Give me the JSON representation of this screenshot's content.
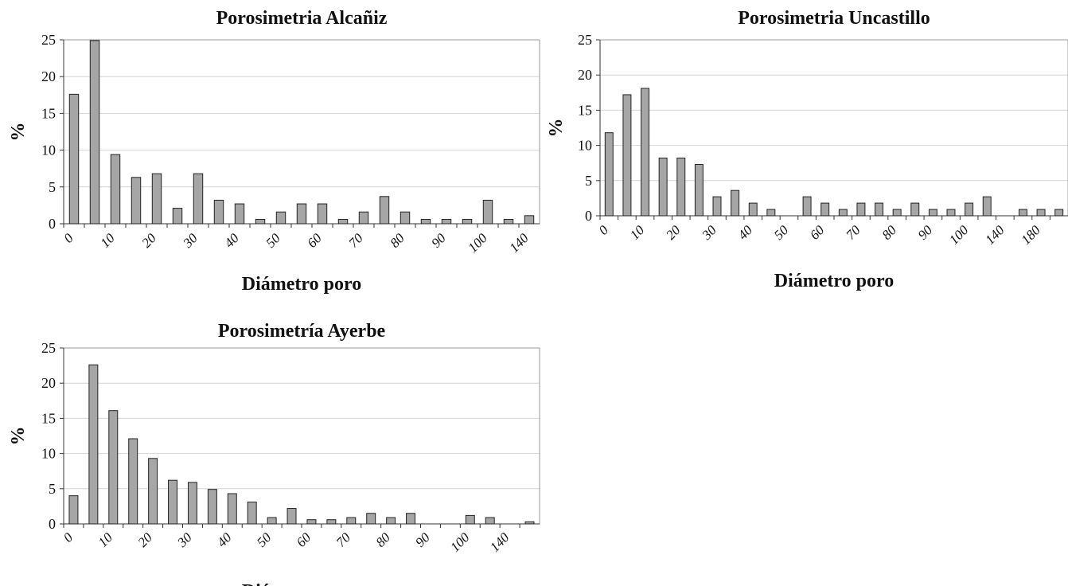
{
  "chart_data": [
    {
      "id": "alcaniz",
      "type": "bar",
      "title": "Porosimetria Alcañiz",
      "xlabel": "Diámetro poro",
      "ylabel": "%",
      "ylim": [
        0,
        25
      ],
      "yticks": [
        0,
        5,
        10,
        15,
        20,
        25
      ],
      "grid": true,
      "x_tick_labels": [
        "0",
        "10",
        "20",
        "30",
        "40",
        "50",
        "60",
        "70",
        "80",
        "90",
        "100",
        "140"
      ],
      "values": [
        17.6,
        24.9,
        9.4,
        6.3,
        6.8,
        2.1,
        6.8,
        3.2,
        2.7,
        0.6,
        1.6,
        2.7,
        2.7,
        0.6,
        1.6,
        3.7,
        1.6,
        0.6,
        0.6,
        0.6,
        3.2,
        0.6,
        1.1
      ]
    },
    {
      "id": "uncastillo",
      "type": "bar",
      "title": "Porosimetria Uncastillo",
      "xlabel": "Diámetro poro",
      "ylabel": "%",
      "ylim": [
        0,
        25
      ],
      "yticks": [
        0,
        5,
        10,
        15,
        20,
        25
      ],
      "grid": true,
      "x_tick_labels": [
        "0",
        "10",
        "20",
        "30",
        "40",
        "50",
        "60",
        "70",
        "80",
        "90",
        "100",
        "140",
        "180"
      ],
      "values": [
        11.8,
        17.2,
        18.1,
        8.2,
        8.2,
        7.3,
        2.7,
        3.6,
        1.8,
        0.9,
        0,
        2.7,
        1.8,
        0.9,
        1.8,
        1.8,
        0.9,
        1.8,
        0.9,
        0.9,
        1.8,
        2.7,
        0,
        0.9,
        0.9,
        0.9
      ]
    },
    {
      "id": "ayerbe",
      "type": "bar",
      "title": "Porosimetría Ayerbe",
      "xlabel": "Diámetro poro",
      "ylabel": "%",
      "ylim": [
        0,
        25
      ],
      "yticks": [
        0,
        5,
        10,
        15,
        20,
        25
      ],
      "grid": true,
      "x_tick_labels": [
        "0",
        "10",
        "20",
        "30",
        "40",
        "50",
        "60",
        "70",
        "80",
        "90",
        "100",
        "140"
      ],
      "values": [
        4.0,
        22.6,
        16.1,
        12.1,
        9.3,
        6.2,
        5.9,
        4.9,
        4.3,
        3.1,
        0.9,
        2.2,
        0.6,
        0.6,
        0.9,
        1.5,
        0.9,
        1.5,
        0,
        0,
        1.2,
        0.9,
        0,
        0.3
      ]
    }
  ]
}
